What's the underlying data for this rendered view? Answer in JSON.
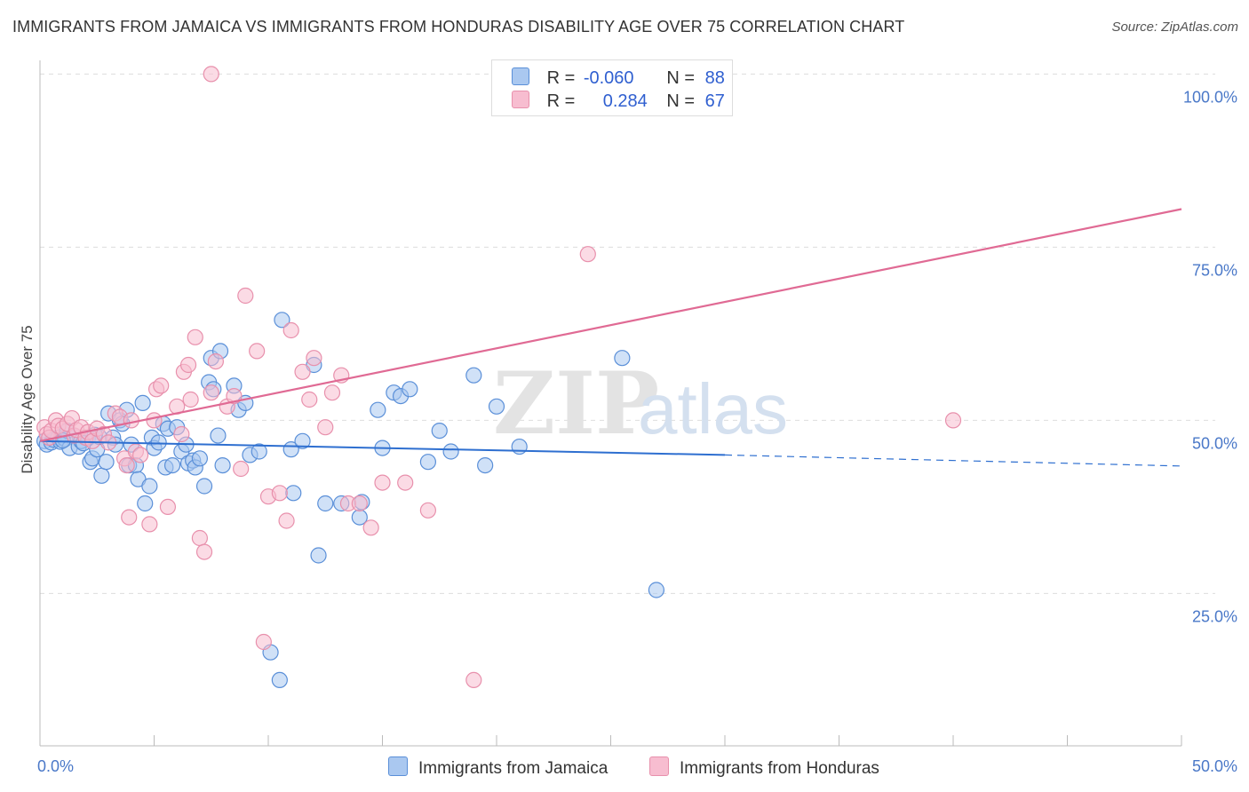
{
  "title": "IMMIGRANTS FROM JAMAICA VS IMMIGRANTS FROM HONDURAS DISABILITY AGE OVER 75 CORRELATION CHART",
  "source": "Source: ZipAtlas.com",
  "watermark": {
    "zip": "ZIP",
    "atlas": "atlas"
  },
  "colors": {
    "jamaica_fill": "#aac8f0",
    "jamaica_stroke": "#5a8fd8",
    "jamaica_line": "#2e6fd0",
    "honduras_fill": "#f7bdd0",
    "honduras_stroke": "#e890ac",
    "honduras_line": "#e06a94",
    "tick_text": "#4a78c8",
    "grid": "#dddddd"
  },
  "legend": {
    "rows": [
      {
        "r_label": "R =",
        "r_value": "-0.060",
        "n_label": "N =",
        "n_value": "88"
      },
      {
        "r_label": "R =",
        "r_value": "0.284",
        "n_label": "N =",
        "n_value": "67"
      }
    ]
  },
  "chart_data": {
    "type": "scatter",
    "title": "IMMIGRANTS FROM JAMAICA VS IMMIGRANTS FROM HONDURAS DISABILITY AGE OVER 75 CORRELATION CHART",
    "xlabel": "",
    "ylabel": "Disability Age Over 75",
    "xlim": [
      0,
      50
    ],
    "ylim": [
      3,
      103
    ],
    "x_tick_labels": [
      "0.0%",
      "50.0%"
    ],
    "y_ticks": [
      25,
      50,
      75,
      100
    ],
    "y_tick_labels": [
      "25.0%",
      "50.0%",
      "75.0%",
      "100.0%"
    ],
    "grid": "horizontal-dashed",
    "legend_position": "bottom",
    "series": [
      {
        "name": "Immigrants from Jamaica",
        "r": -0.06,
        "n": 88,
        "trend": {
          "x": [
            0,
            30,
            50
          ],
          "y": [
            47.0,
            45.0,
            43.4
          ],
          "solid_until_x": 30
        },
        "points": [
          [
            0.2,
            47.0
          ],
          [
            0.3,
            46.5
          ],
          [
            0.4,
            47.5
          ],
          [
            0.5,
            46.8
          ],
          [
            0.6,
            47.2
          ],
          [
            0.8,
            47.5
          ],
          [
            0.9,
            46.9
          ],
          [
            1.1,
            47.3
          ],
          [
            1.2,
            48.5
          ],
          [
            1.3,
            46.0
          ],
          [
            1.5,
            47.8
          ],
          [
            1.7,
            46.2
          ],
          [
            1.8,
            47.0
          ],
          [
            2.1,
            47.4
          ],
          [
            2.2,
            44.0
          ],
          [
            2.3,
            44.5
          ],
          [
            2.5,
            45.8
          ],
          [
            2.6,
            47.6
          ],
          [
            2.7,
            42.0
          ],
          [
            2.9,
            44.0
          ],
          [
            3.0,
            51.0
          ],
          [
            3.2,
            47.5
          ],
          [
            3.3,
            46.5
          ],
          [
            3.5,
            50.0
          ],
          [
            3.6,
            49.5
          ],
          [
            3.8,
            51.5
          ],
          [
            3.9,
            43.5
          ],
          [
            4.0,
            46.5
          ],
          [
            4.2,
            43.5
          ],
          [
            4.3,
            41.5
          ],
          [
            4.5,
            52.5
          ],
          [
            4.6,
            38.0
          ],
          [
            4.8,
            40.5
          ],
          [
            4.9,
            47.5
          ],
          [
            5.0,
            46.0
          ],
          [
            5.2,
            46.8
          ],
          [
            5.4,
            49.5
          ],
          [
            5.5,
            43.2
          ],
          [
            5.6,
            48.8
          ],
          [
            5.8,
            43.5
          ],
          [
            6.0,
            49.0
          ],
          [
            6.2,
            45.5
          ],
          [
            6.4,
            46.5
          ],
          [
            6.5,
            43.8
          ],
          [
            6.7,
            44.2
          ],
          [
            6.8,
            43.2
          ],
          [
            7.0,
            44.5
          ],
          [
            7.2,
            40.5
          ],
          [
            7.4,
            55.5
          ],
          [
            7.5,
            59.0
          ],
          [
            7.6,
            54.5
          ],
          [
            7.8,
            47.8
          ],
          [
            7.9,
            60.0
          ],
          [
            8.0,
            43.5
          ],
          [
            8.5,
            55.0
          ],
          [
            8.7,
            51.5
          ],
          [
            9.0,
            52.5
          ],
          [
            9.2,
            45.0
          ],
          [
            9.6,
            45.5
          ],
          [
            10.6,
            64.5
          ],
          [
            10.1,
            16.5
          ],
          [
            10.5,
            12.5
          ],
          [
            11.0,
            45.8
          ],
          [
            11.1,
            39.5
          ],
          [
            11.5,
            47.0
          ],
          [
            12.0,
            58.0
          ],
          [
            12.2,
            30.5
          ],
          [
            12.5,
            38.0
          ],
          [
            13.2,
            38.0
          ],
          [
            14.0,
            36.0
          ],
          [
            14.1,
            38.2
          ],
          [
            14.8,
            51.5
          ],
          [
            15.0,
            46.0
          ],
          [
            15.5,
            54.0
          ],
          [
            15.8,
            53.5
          ],
          [
            16.2,
            54.5
          ],
          [
            17.0,
            44.0
          ],
          [
            17.5,
            48.5
          ],
          [
            18.0,
            45.5
          ],
          [
            19.0,
            56.5
          ],
          [
            19.5,
            43.5
          ],
          [
            20.0,
            52.0
          ],
          [
            21.0,
            46.2
          ],
          [
            25.5,
            59.0
          ],
          [
            27.0,
            25.5
          ],
          [
            1.0,
            47.1
          ],
          [
            1.9,
            46.7
          ],
          [
            2.4,
            47.9
          ]
        ]
      },
      {
        "name": "Immigrants from Honduras",
        "r": 0.284,
        "n": 67,
        "trend": {
          "x": [
            0,
            50
          ],
          "y": [
            47.0,
            80.5
          ]
        },
        "points": [
          [
            0.2,
            49.0
          ],
          [
            0.3,
            48.0
          ],
          [
            0.4,
            47.5
          ],
          [
            0.5,
            48.5
          ],
          [
            0.7,
            50.0
          ],
          [
            0.8,
            49.2
          ],
          [
            1.0,
            48.8
          ],
          [
            1.2,
            49.5
          ],
          [
            1.4,
            50.3
          ],
          [
            1.5,
            47.8
          ],
          [
            1.6,
            48.6
          ],
          [
            1.8,
            49.0
          ],
          [
            2.0,
            47.5
          ],
          [
            2.1,
            48.3
          ],
          [
            2.3,
            47.0
          ],
          [
            2.5,
            48.8
          ],
          [
            2.8,
            48.0
          ],
          [
            3.0,
            46.8
          ],
          [
            3.3,
            51.0
          ],
          [
            3.5,
            50.5
          ],
          [
            3.7,
            44.5
          ],
          [
            3.8,
            43.5
          ],
          [
            3.9,
            36.0
          ],
          [
            4.0,
            50.0
          ],
          [
            4.2,
            45.5
          ],
          [
            4.4,
            45.0
          ],
          [
            4.8,
            35.0
          ],
          [
            5.0,
            50.0
          ],
          [
            5.1,
            54.5
          ],
          [
            5.3,
            55.0
          ],
          [
            5.6,
            37.5
          ],
          [
            6.0,
            52.0
          ],
          [
            6.2,
            48.0
          ],
          [
            6.3,
            57.0
          ],
          [
            6.5,
            58.0
          ],
          [
            6.6,
            53.0
          ],
          [
            6.8,
            62.0
          ],
          [
            7.0,
            33.0
          ],
          [
            7.2,
            31.0
          ],
          [
            7.5,
            54.0
          ],
          [
            7.7,
            58.5
          ],
          [
            8.2,
            52.0
          ],
          [
            8.5,
            53.5
          ],
          [
            8.8,
            43.0
          ],
          [
            9.0,
            68.0
          ],
          [
            9.5,
            60.0
          ],
          [
            9.8,
            18.0
          ],
          [
            10.0,
            39.0
          ],
          [
            10.5,
            39.5
          ],
          [
            10.8,
            35.5
          ],
          [
            11.0,
            63.0
          ],
          [
            11.5,
            57.0
          ],
          [
            11.8,
            53.0
          ],
          [
            12.0,
            59.0
          ],
          [
            12.5,
            49.0
          ],
          [
            12.8,
            54.0
          ],
          [
            13.2,
            56.5
          ],
          [
            13.5,
            38.0
          ],
          [
            14.0,
            38.0
          ],
          [
            14.5,
            34.5
          ],
          [
            15.0,
            41.0
          ],
          [
            16.0,
            41.0
          ],
          [
            17.0,
            37.0
          ],
          [
            19.0,
            12.5
          ],
          [
            24.0,
            74.0
          ],
          [
            40.0,
            50.0
          ],
          [
            7.5,
            100.0
          ]
        ]
      }
    ]
  },
  "bottom_legend": [
    {
      "label": "Immigrants from Jamaica"
    },
    {
      "label": "Immigrants from Honduras"
    }
  ]
}
